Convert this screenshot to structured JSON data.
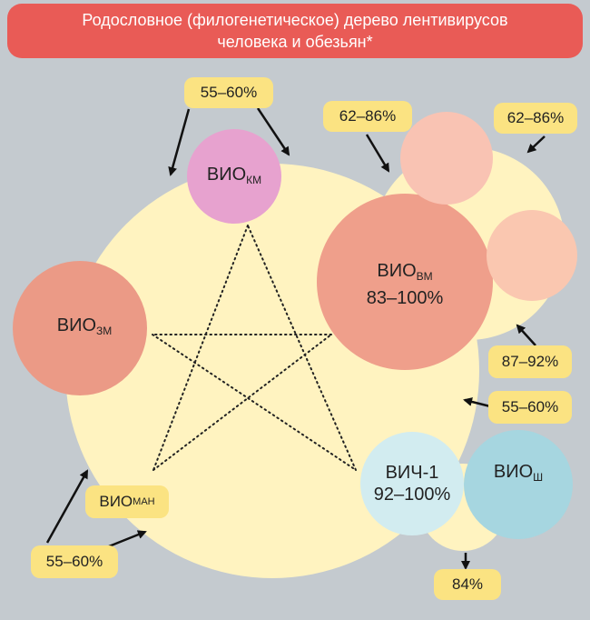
{
  "header": {
    "title_line1": "Родословное (филогенетическое) дерево лентивирусов",
    "title_line2": "человека и обезьян*"
  },
  "circles": {
    "siv_km": {
      "main": "ВИО",
      "sub": "КМ"
    },
    "siv_vm": {
      "main": "ВИО",
      "sub": "ВМ",
      "value": "83–100%"
    },
    "siv_zm": {
      "main": "ВИО",
      "sub": "ЗМ"
    },
    "hiv1": {
      "main": "ВИЧ-1",
      "value": "92–100%"
    },
    "siv_sh": {
      "main": "ВИО",
      "sub": "Ш"
    }
  },
  "tags": {
    "top_km": "55–60%",
    "top_left_62": "62–86%",
    "top_right_62": "62–86%",
    "right_87": "87–92%",
    "right_55": "55–60%",
    "bottom_84": "84%",
    "bottom_left_55": "55–60%",
    "man": {
      "main": "ВИО",
      "sub": "МАН"
    }
  },
  "colors": {
    "background": "#c4cacf",
    "header": "#e95b56",
    "big_circle": "#fff3c0",
    "tag": "#fbe382",
    "pink": "#e7a2cf",
    "salmon": "#eb9a86",
    "coral": "#ef9f8b",
    "peach": "#f9c3b3",
    "light_peach": "#fac7b0",
    "light_blue": "#d2ecf0",
    "blue": "#a6d6e0"
  }
}
